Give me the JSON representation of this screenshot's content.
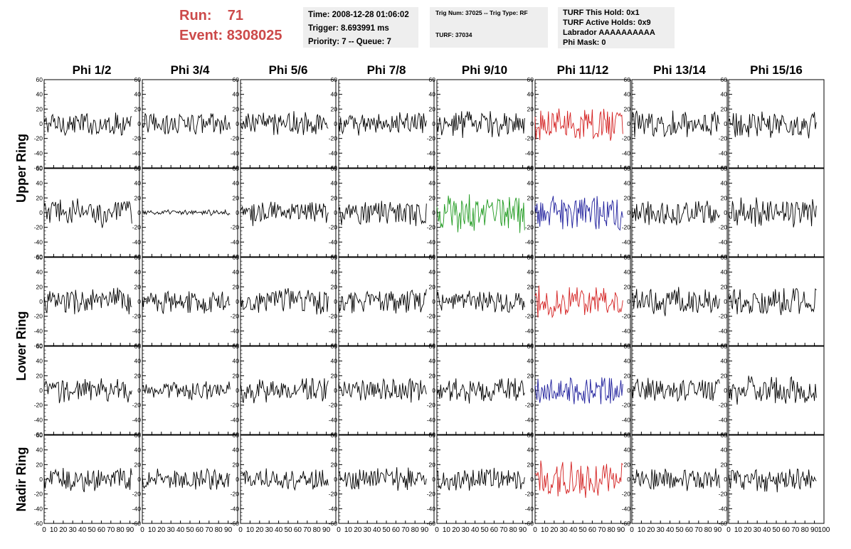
{
  "header": {
    "run_label": "Run:",
    "run_value": "71",
    "event_label": "Event:",
    "event_value": "8308025",
    "time": "Time: 2008-12-28 01:06:02",
    "trigger": "Trigger: 8.693991 ms",
    "priority": "Priority: 7 -- Queue: 7",
    "trig_num": "Trig Num: 37025 -- Trig Type: RF",
    "turf": "TURF: 37034",
    "turf_this_hold": "TURF This Hold: 0x1",
    "turf_active_holds": "TURF Active Holds: 0x9",
    "labrador": "Labrador AAAAAAAAAA",
    "phi_mask": "Phi Mask: 0"
  },
  "colors": {
    "run_text": "#cc4a4a",
    "red": "#d42020",
    "green": "#1f9a1f",
    "blue": "#1e1e9c",
    "black": "#000000"
  },
  "chart_data": {
    "type": "line",
    "columns": [
      "Phi 1/2",
      "Phi 3/4",
      "Phi 5/6",
      "Phi 7/8",
      "Phi 9/10",
      "Phi 11/12",
      "Phi 13/14",
      "Phi 15/16"
    ],
    "rows": [
      {
        "label": "Upper Ring",
        "rows": [
          "upper-1",
          "upper-2"
        ]
      },
      {
        "label": "Lower Ring",
        "rows": [
          "lower-1",
          "lower-2"
        ]
      },
      {
        "label": "Nadir Ring",
        "rows": [
          "nadir"
        ]
      }
    ],
    "ylim": [
      -60,
      60
    ],
    "yticks": [
      -60,
      -40,
      -20,
      0,
      20,
      40,
      60
    ],
    "xlim": [
      0,
      100
    ],
    "xtick_labels": [
      "0",
      "10",
      "20",
      "30",
      "40",
      "50",
      "60",
      "70",
      "80",
      "90",
      "100"
    ],
    "samples_x_max": 92,
    "panels": [
      {
        "row": 0,
        "col": 0,
        "color": "black",
        "amplitude": 14
      },
      {
        "row": 0,
        "col": 1,
        "color": "black",
        "amplitude": 13
      },
      {
        "row": 0,
        "col": 2,
        "color": "black",
        "amplitude": 15
      },
      {
        "row": 0,
        "col": 3,
        "color": "black",
        "amplitude": 13
      },
      {
        "row": 0,
        "col": 4,
        "color": "black",
        "amplitude": 16
      },
      {
        "row": 0,
        "col": 5,
        "color": "red",
        "amplitude": 18
      },
      {
        "row": 0,
        "col": 6,
        "color": "black",
        "amplitude": 16
      },
      {
        "row": 0,
        "col": 7,
        "color": "black",
        "amplitude": 17
      },
      {
        "row": 1,
        "col": 0,
        "color": "black",
        "amplitude": 17
      },
      {
        "row": 1,
        "col": 1,
        "color": "black",
        "amplitude": 3
      },
      {
        "row": 1,
        "col": 2,
        "color": "black",
        "amplitude": 15
      },
      {
        "row": 1,
        "col": 3,
        "color": "black",
        "amplitude": 16
      },
      {
        "row": 1,
        "col": 4,
        "color": "green",
        "amplitude": 22
      },
      {
        "row": 1,
        "col": 5,
        "color": "blue",
        "amplitude": 20
      },
      {
        "row": 1,
        "col": 6,
        "color": "black",
        "amplitude": 15
      },
      {
        "row": 1,
        "col": 7,
        "color": "black",
        "amplitude": 17
      },
      {
        "row": 2,
        "col": 0,
        "color": "black",
        "amplitude": 16
      },
      {
        "row": 2,
        "col": 1,
        "color": "black",
        "amplitude": 14
      },
      {
        "row": 2,
        "col": 2,
        "color": "black",
        "amplitude": 16
      },
      {
        "row": 2,
        "col": 3,
        "color": "black",
        "amplitude": 14
      },
      {
        "row": 2,
        "col": 4,
        "color": "black",
        "amplitude": 12
      },
      {
        "row": 2,
        "col": 5,
        "color": "red",
        "amplitude": 18
      },
      {
        "row": 2,
        "col": 6,
        "color": "black",
        "amplitude": 16
      },
      {
        "row": 2,
        "col": 7,
        "color": "black",
        "amplitude": 16
      },
      {
        "row": 3,
        "col": 0,
        "color": "black",
        "amplitude": 15
      },
      {
        "row": 3,
        "col": 1,
        "color": "black",
        "amplitude": 11
      },
      {
        "row": 3,
        "col": 2,
        "color": "black",
        "amplitude": 15
      },
      {
        "row": 3,
        "col": 3,
        "color": "black",
        "amplitude": 14
      },
      {
        "row": 3,
        "col": 4,
        "color": "black",
        "amplitude": 14
      },
      {
        "row": 3,
        "col": 5,
        "color": "blue",
        "amplitude": 17
      },
      {
        "row": 3,
        "col": 6,
        "color": "black",
        "amplitude": 14
      },
      {
        "row": 3,
        "col": 7,
        "color": "black",
        "amplitude": 17
      },
      {
        "row": 4,
        "col": 0,
        "color": "black",
        "amplitude": 14
      },
      {
        "row": 4,
        "col": 1,
        "color": "black",
        "amplitude": 12
      },
      {
        "row": 4,
        "col": 2,
        "color": "black",
        "amplitude": 12
      },
      {
        "row": 4,
        "col": 3,
        "color": "black",
        "amplitude": 13
      },
      {
        "row": 4,
        "col": 4,
        "color": "black",
        "amplitude": 13
      },
      {
        "row": 4,
        "col": 5,
        "color": "red",
        "amplitude": 21
      },
      {
        "row": 4,
        "col": 6,
        "color": "black",
        "amplitude": 13
      },
      {
        "row": 4,
        "col": 7,
        "color": "black",
        "amplitude": 15
      }
    ]
  }
}
